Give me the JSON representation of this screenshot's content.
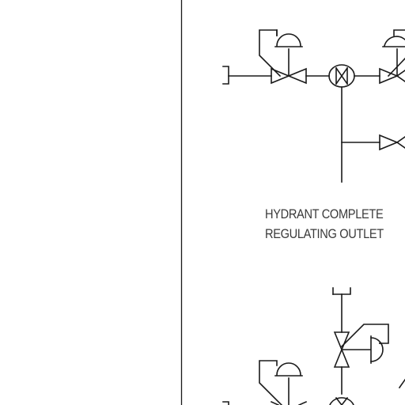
{
  "diagram": {
    "caption": {
      "line1": "HYDRANT COMPLETE",
      "line2": "REGULATING OUTLET"
    },
    "colors": {
      "line": "#1a1a1a",
      "background": "#ffffff",
      "text": "#3a3a3a"
    },
    "symbols": [
      "left-border-line",
      "pipe-cap-icon",
      "pressure-regulating-valve-icon",
      "gate-valve-icon",
      "check-valve-icon",
      "flow-meter-icon",
      "diaphragm-actuator-icon"
    ]
  }
}
